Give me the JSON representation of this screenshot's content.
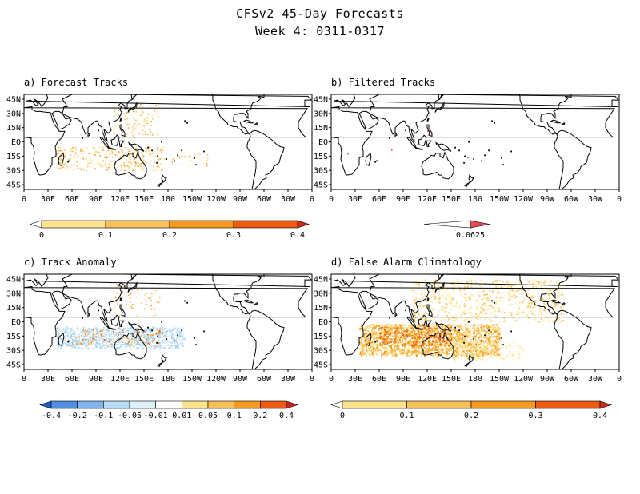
{
  "title_line1": "CFSv2 45-Day Forecasts",
  "title_line2": "Week 4: 0311-0317",
  "lon_labels": [
    "0",
    "30E",
    "60E",
    "90E",
    "120E",
    "150E",
    "180",
    "150W",
    "120W",
    "90W",
    "60W",
    "30W",
    "0"
  ],
  "lat_labels": [
    "45N",
    "30N",
    "15N",
    "EQ",
    "15S",
    "30S",
    "45S"
  ],
  "panels": [
    {
      "label": "a) Forecast Tracks",
      "colorbar": {
        "ticks": [
          "0",
          "0.1",
          "0.2",
          "0.3",
          "0.4"
        ],
        "colors": [
          "#ffffff",
          "#fde38c",
          "#f8c05a",
          "#f59a1f",
          "#ec5a14",
          "#d12a1c"
        ]
      }
    },
    {
      "label": "b) Filtered Tracks",
      "colorbar": {
        "ticks": [
          "0.0625"
        ],
        "colors": [
          "#ffffff",
          "#e8485a"
        ]
      }
    },
    {
      "label": "c) Track Anomaly",
      "colorbar": {
        "ticks": [
          "-0.4",
          "-0.2",
          "-0.1",
          "-0.05",
          "-0.01",
          "0.01",
          "0.05",
          "0.1",
          "0.2",
          "0.4"
        ],
        "colors": [
          "#1f5fc8",
          "#4f8fe0",
          "#7fb5ec",
          "#b6dbf3",
          "#dff1fb",
          "#ffffff",
          "#fde38c",
          "#f8c05a",
          "#f59a1f",
          "#ec5a14",
          "#c8281a"
        ]
      }
    },
    {
      "label": "d) False Alarm Climatology",
      "colorbar": {
        "ticks": [
          "0",
          "0.1",
          "0.2",
          "0.3",
          "0.4"
        ],
        "colors": [
          "#ffffff",
          "#fde38c",
          "#f8c05a",
          "#f59a1f",
          "#ec5a14",
          "#d12a1c"
        ]
      }
    }
  ]
}
